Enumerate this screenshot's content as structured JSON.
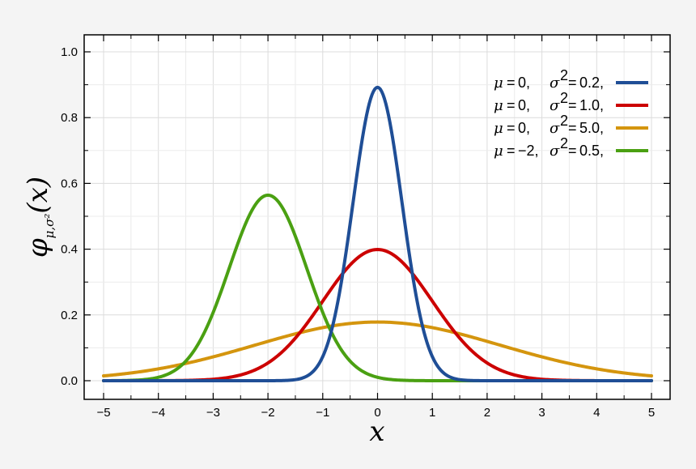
{
  "chart_data": {
    "type": "line",
    "xlabel": "x",
    "ylabel": "φμ,σ²(x)",
    "ylabel_main": "φ",
    "ylabel_sub": "μ,σ²",
    "ylabel_arg": "(x)",
    "xlim": [
      -5,
      5
    ],
    "ylim": [
      0,
      1.0
    ],
    "xticks": [
      -5,
      -4,
      -3,
      -2,
      -1,
      0,
      1,
      2,
      3,
      4,
      5
    ],
    "xtick_labels": [
      "−5",
      "−4",
      "−3",
      "−2",
      "−1",
      "0",
      "1",
      "2",
      "3",
      "4",
      "5"
    ],
    "yticks": [
      0,
      0.2,
      0.4,
      0.6,
      0.8,
      1.0
    ],
    "ytick_labels": [
      "0.0",
      "0.2",
      "0.4",
      "0.6",
      "0.8",
      "1.0"
    ],
    "grid": true,
    "legend_position": "top-right",
    "series": [
      {
        "mu": 0,
        "variance": 0.2,
        "mu_label": "0,",
        "var_label": "0.2,",
        "color": "#1f4e96"
      },
      {
        "mu": 0,
        "variance": 1.0,
        "mu_label": "0,",
        "var_label": "1.0,",
        "color": "#cc0000"
      },
      {
        "mu": 0,
        "variance": 5.0,
        "mu_label": "0,",
        "var_label": "5.0,",
        "color": "#d4950e"
      },
      {
        "mu": -2,
        "variance": 0.5,
        "mu_label": "−2,",
        "var_label": "0.5,",
        "color": "#4aa012"
      }
    ]
  }
}
